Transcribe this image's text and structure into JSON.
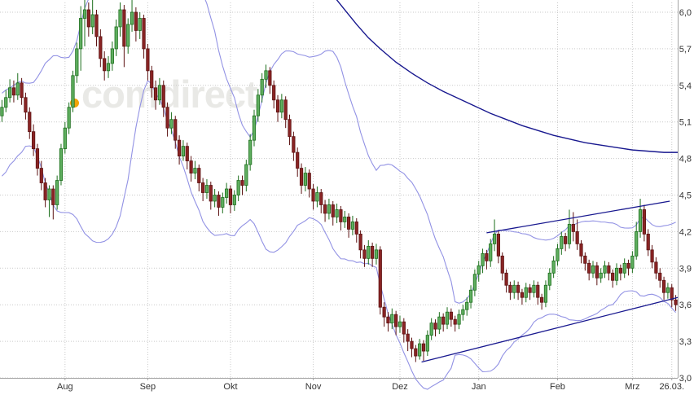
{
  "watermark": {
    "dot_icon": "orange-dot",
    "dot_color": "#f2a407",
    "text": "comdirect",
    "text_color": "#e9e9e6"
  },
  "chart_data": {
    "type": "candlestick",
    "grid": true,
    "legend": "none",
    "y_axis": {
      "min": 3.0,
      "max": 6.0,
      "side": "right",
      "ticks": [
        {
          "label": "6,0",
          "value": 6.0
        },
        {
          "label": "5,7",
          "value": 5.7
        },
        {
          "label": "5,4",
          "value": 5.4
        },
        {
          "label": "5,1",
          "value": 5.1
        },
        {
          "label": "4,8",
          "value": 4.8
        },
        {
          "label": "4,5",
          "value": 4.5
        },
        {
          "label": "4,2",
          "value": 4.2
        },
        {
          "label": "3,9",
          "value": 3.9
        },
        {
          "label": "3,6",
          "value": 3.6
        },
        {
          "label": "3,3",
          "value": 3.3
        },
        {
          "label": "3,0",
          "value": 3.0
        }
      ]
    },
    "x_axis": {
      "ticks": [
        {
          "label": "Aug",
          "index": 16
        },
        {
          "label": "Sep",
          "index": 37
        },
        {
          "label": "Okt",
          "index": 58
        },
        {
          "label": "Nov",
          "index": 79
        },
        {
          "label": "Dez",
          "index": 101
        },
        {
          "label": "Jan",
          "index": 121
        },
        {
          "label": "Feb",
          "index": 141
        },
        {
          "label": "Mrz",
          "index": 160
        },
        {
          "label": "26.03.",
          "index": 170
        }
      ]
    },
    "colors": {
      "up_fill": "#5fae5f",
      "up_stroke": "#1d6f1d",
      "down_fill": "#8a2424",
      "down_stroke": "#5c1212",
      "band": "#9292e4",
      "trend": "#18188f",
      "grid": "#c9c9c9",
      "axis_line": "#a5a5a5",
      "axis_text": "#333333"
    },
    "candles": [
      [
        5.15,
        5.28,
        5.1,
        5.22
      ],
      [
        5.22,
        5.36,
        5.18,
        5.3
      ],
      [
        5.3,
        5.45,
        5.26,
        5.38
      ],
      [
        5.38,
        5.44,
        5.26,
        5.32
      ],
      [
        5.32,
        5.5,
        5.28,
        5.42
      ],
      [
        5.42,
        5.46,
        5.24,
        5.3
      ],
      [
        5.3,
        5.34,
        5.12,
        5.18
      ],
      [
        5.18,
        5.22,
        4.96,
        5.02
      ],
      [
        5.02,
        5.08,
        4.82,
        4.88
      ],
      [
        4.88,
        4.92,
        4.66,
        4.72
      ],
      [
        4.72,
        4.78,
        4.54,
        4.6
      ],
      [
        4.6,
        4.64,
        4.4,
        4.46
      ],
      [
        4.46,
        4.58,
        4.32,
        4.55
      ],
      [
        4.55,
        4.58,
        4.3,
        4.42
      ],
      [
        4.42,
        4.66,
        4.38,
        4.62
      ],
      [
        4.62,
        4.92,
        4.58,
        4.88
      ],
      [
        4.88,
        5.1,
        4.84,
        5.05
      ],
      [
        5.05,
        5.26,
        5.0,
        5.22
      ],
      [
        5.22,
        5.52,
        5.18,
        5.48
      ],
      [
        5.48,
        5.75,
        5.42,
        5.7
      ],
      [
        5.7,
        6.05,
        5.52,
        5.95
      ],
      [
        5.95,
        6.1,
        5.72,
        6.02
      ],
      [
        6.02,
        6.08,
        5.8,
        5.88
      ],
      [
        5.88,
        6.12,
        5.82,
        5.98
      ],
      [
        5.98,
        6.02,
        5.72,
        5.8
      ],
      [
        5.8,
        5.86,
        5.55,
        5.62
      ],
      [
        5.62,
        5.68,
        5.44,
        5.52
      ],
      [
        5.52,
        5.64,
        5.46,
        5.58
      ],
      [
        5.58,
        5.76,
        5.52,
        5.7
      ],
      [
        5.7,
        5.94,
        5.64,
        5.88
      ],
      [
        5.88,
        6.08,
        5.8,
        6.02
      ],
      [
        6.02,
        6.06,
        5.55,
        5.72
      ],
      [
        5.72,
        5.95,
        5.66,
        5.9
      ],
      [
        5.9,
        6.1,
        5.84,
        6.0
      ],
      [
        6.0,
        6.04,
        5.76,
        5.85
      ],
      [
        5.85,
        6.0,
        5.78,
        5.95
      ],
      [
        5.95,
        5.98,
        5.62,
        5.7
      ],
      [
        5.7,
        5.74,
        5.44,
        5.52
      ],
      [
        5.52,
        5.56,
        5.3,
        5.38
      ],
      [
        5.38,
        5.44,
        5.2,
        5.28
      ],
      [
        5.28,
        5.46,
        5.24,
        5.4
      ],
      [
        5.4,
        5.44,
        5.14,
        5.22
      ],
      [
        5.22,
        5.26,
        4.98,
        5.05
      ],
      [
        5.05,
        5.18,
        5.0,
        5.12
      ],
      [
        5.12,
        5.15,
        4.88,
        4.95
      ],
      [
        4.95,
        4.99,
        4.75,
        4.82
      ],
      [
        4.82,
        4.95,
        4.78,
        4.9
      ],
      [
        4.9,
        4.93,
        4.71,
        4.78
      ],
      [
        4.78,
        4.82,
        4.61,
        4.68
      ],
      [
        4.68,
        4.78,
        4.63,
        4.72
      ],
      [
        4.72,
        4.75,
        4.53,
        4.6
      ],
      [
        4.6,
        4.64,
        4.45,
        4.52
      ],
      [
        4.52,
        4.63,
        4.47,
        4.58
      ],
      [
        4.58,
        4.61,
        4.38,
        4.45
      ],
      [
        4.45,
        4.55,
        4.4,
        4.5
      ],
      [
        4.5,
        4.53,
        4.33,
        4.4
      ],
      [
        4.4,
        4.52,
        4.35,
        4.48
      ],
      [
        4.48,
        4.6,
        4.43,
        4.55
      ],
      [
        4.55,
        4.58,
        4.35,
        4.42
      ],
      [
        4.42,
        4.54,
        4.37,
        4.5
      ],
      [
        4.5,
        4.66,
        4.45,
        4.62
      ],
      [
        4.62,
        4.66,
        4.5,
        4.58
      ],
      [
        4.58,
        4.79,
        4.53,
        4.75
      ],
      [
        4.75,
        5.0,
        4.7,
        4.95
      ],
      [
        4.95,
        5.2,
        4.9,
        5.15
      ],
      [
        5.15,
        5.37,
        5.1,
        5.32
      ],
      [
        5.32,
        5.5,
        5.26,
        5.45
      ],
      [
        5.45,
        5.57,
        5.38,
        5.52
      ],
      [
        5.52,
        5.55,
        5.33,
        5.4
      ],
      [
        5.4,
        5.44,
        5.21,
        5.28
      ],
      [
        5.28,
        5.32,
        5.1,
        5.18
      ],
      [
        5.18,
        5.33,
        5.13,
        5.28
      ],
      [
        5.28,
        5.31,
        5.05,
        5.12
      ],
      [
        5.12,
        5.16,
        4.91,
        4.98
      ],
      [
        4.98,
        5.02,
        4.78,
        4.85
      ],
      [
        4.85,
        4.89,
        4.65,
        4.72
      ],
      [
        4.72,
        4.76,
        4.51,
        4.58
      ],
      [
        4.58,
        4.73,
        4.53,
        4.68
      ],
      [
        4.68,
        4.71,
        4.48,
        4.55
      ],
      [
        4.55,
        4.59,
        4.38,
        4.45
      ],
      [
        4.45,
        4.57,
        4.4,
        4.52
      ],
      [
        4.52,
        4.55,
        4.35,
        4.42
      ],
      [
        4.42,
        4.46,
        4.28,
        4.35
      ],
      [
        4.35,
        4.47,
        4.3,
        4.42
      ],
      [
        4.42,
        4.45,
        4.25,
        4.32
      ],
      [
        4.32,
        4.43,
        4.27,
        4.38
      ],
      [
        4.38,
        4.41,
        4.21,
        4.28
      ],
      [
        4.28,
        4.37,
        4.23,
        4.32
      ],
      [
        4.32,
        4.35,
        4.15,
        4.22
      ],
      [
        4.22,
        4.33,
        4.17,
        4.28
      ],
      [
        4.28,
        4.31,
        4.11,
        4.18
      ],
      [
        4.18,
        4.21,
        3.98,
        4.05
      ],
      [
        4.05,
        4.09,
        3.91,
        3.98
      ],
      [
        3.98,
        4.13,
        3.93,
        4.08
      ],
      [
        4.08,
        4.11,
        3.91,
        3.98
      ],
      [
        3.98,
        4.1,
        3.93,
        4.05
      ],
      [
        4.05,
        4.08,
        3.52,
        3.58
      ],
      [
        3.58,
        3.62,
        3.42,
        3.5
      ],
      [
        3.5,
        3.54,
        3.38,
        3.45
      ],
      [
        3.45,
        3.57,
        3.4,
        3.52
      ],
      [
        3.52,
        3.55,
        3.35,
        3.42
      ],
      [
        3.42,
        3.51,
        3.37,
        3.46
      ],
      [
        3.46,
        3.49,
        3.29,
        3.36
      ],
      [
        3.36,
        3.4,
        3.22,
        3.3
      ],
      [
        3.3,
        3.33,
        3.17,
        3.24
      ],
      [
        3.24,
        3.27,
        3.13,
        3.18
      ],
      [
        3.18,
        3.32,
        3.15,
        3.28
      ],
      [
        3.28,
        3.31,
        3.14,
        3.22
      ],
      [
        3.22,
        3.39,
        3.18,
        3.35
      ],
      [
        3.35,
        3.49,
        3.31,
        3.45
      ],
      [
        3.45,
        3.48,
        3.34,
        3.4
      ],
      [
        3.4,
        3.54,
        3.36,
        3.5
      ],
      [
        3.5,
        3.53,
        3.38,
        3.44
      ],
      [
        3.44,
        3.58,
        3.4,
        3.54
      ],
      [
        3.54,
        3.57,
        3.42,
        3.48
      ],
      [
        3.48,
        3.51,
        3.38,
        3.44
      ],
      [
        3.44,
        3.56,
        3.4,
        3.52
      ],
      [
        3.52,
        3.6,
        3.47,
        3.56
      ],
      [
        3.56,
        3.66,
        3.51,
        3.62
      ],
      [
        3.62,
        3.76,
        3.57,
        3.72
      ],
      [
        3.72,
        3.89,
        3.67,
        3.85
      ],
      [
        3.85,
        3.96,
        3.79,
        3.92
      ],
      [
        3.92,
        4.06,
        3.86,
        4.02
      ],
      [
        4.02,
        4.05,
        3.89,
        3.96
      ],
      [
        3.96,
        4.14,
        3.91,
        4.1
      ],
      [
        4.1,
        4.3,
        4.04,
        4.18
      ],
      [
        4.18,
        4.21,
        3.94,
        4.0
      ],
      [
        4.0,
        4.03,
        3.8,
        3.86
      ],
      [
        3.86,
        3.89,
        3.7,
        3.76
      ],
      [
        3.76,
        3.79,
        3.64,
        3.7
      ],
      [
        3.7,
        3.8,
        3.65,
        3.76
      ],
      [
        3.76,
        3.79,
        3.64,
        3.7
      ],
      [
        3.7,
        3.73,
        3.6,
        3.66
      ],
      [
        3.66,
        3.78,
        3.62,
        3.74
      ],
      [
        3.74,
        3.77,
        3.64,
        3.7
      ],
      [
        3.7,
        3.8,
        3.66,
        3.76
      ],
      [
        3.76,
        3.79,
        3.6,
        3.66
      ],
      [
        3.66,
        3.69,
        3.56,
        3.62
      ],
      [
        3.62,
        3.8,
        3.58,
        3.76
      ],
      [
        3.76,
        3.9,
        3.72,
        3.86
      ],
      [
        3.86,
        4.0,
        3.82,
        3.96
      ],
      [
        3.96,
        4.1,
        3.92,
        4.06
      ],
      [
        4.06,
        4.2,
        4.01,
        4.16
      ],
      [
        4.16,
        4.19,
        4.04,
        4.1
      ],
      [
        4.1,
        4.38,
        4.06,
        4.26
      ],
      [
        4.26,
        4.36,
        4.12,
        4.2
      ],
      [
        4.2,
        4.3,
        4.05,
        4.1
      ],
      [
        4.1,
        4.13,
        3.94,
        4.0
      ],
      [
        4.0,
        4.03,
        3.88,
        3.94
      ],
      [
        3.94,
        3.97,
        3.8,
        3.86
      ],
      [
        3.86,
        3.96,
        3.82,
        3.92
      ],
      [
        3.92,
        3.95,
        3.76,
        3.82
      ],
      [
        3.82,
        3.9,
        3.78,
        3.86
      ],
      [
        3.86,
        3.96,
        3.82,
        3.92
      ],
      [
        3.92,
        3.95,
        3.8,
        3.86
      ],
      [
        3.86,
        3.89,
        3.74,
        3.8
      ],
      [
        3.8,
        3.94,
        3.76,
        3.9
      ],
      [
        3.9,
        3.93,
        3.8,
        3.86
      ],
      [
        3.86,
        3.98,
        3.82,
        3.94
      ],
      [
        3.94,
        3.97,
        3.84,
        3.9
      ],
      [
        3.9,
        4.04,
        3.86,
        4.0
      ],
      [
        4.0,
        4.28,
        3.97,
        4.2
      ],
      [
        4.2,
        4.47,
        4.15,
        4.38
      ],
      [
        4.38,
        4.42,
        4.12,
        4.18
      ],
      [
        4.18,
        4.22,
        4.0,
        4.05
      ],
      [
        4.05,
        4.09,
        3.9,
        3.95
      ],
      [
        3.95,
        3.99,
        3.81,
        3.86
      ],
      [
        3.86,
        3.9,
        3.74,
        3.8
      ],
      [
        3.8,
        3.83,
        3.64,
        3.7
      ],
      [
        3.7,
        3.78,
        3.65,
        3.74
      ],
      [
        3.74,
        3.77,
        3.58,
        3.64
      ],
      [
        3.64,
        3.68,
        3.55,
        3.6
      ]
    ],
    "overlays": {
      "bollinger": {
        "period": 20,
        "stddev": 2,
        "warmup_closes": [
          4.55,
          4.7,
          4.62,
          4.8,
          4.75,
          4.9,
          4.85,
          5.0,
          4.92,
          5.05,
          5.0,
          5.1,
          5.05,
          5.12,
          5.08,
          5.15,
          5.1,
          5.18,
          5.12,
          5.2
        ]
      },
      "sma_long": {
        "points": [
          [
            84,
            6.14
          ],
          [
            87,
            6.02
          ],
          [
            90,
            5.9
          ],
          [
            93,
            5.79
          ],
          [
            96,
            5.7
          ],
          [
            100,
            5.59
          ],
          [
            104,
            5.5
          ],
          [
            108,
            5.42
          ],
          [
            112,
            5.35
          ],
          [
            116,
            5.29
          ],
          [
            120,
            5.23
          ],
          [
            124,
            5.17
          ],
          [
            128,
            5.12
          ],
          [
            132,
            5.07
          ],
          [
            136,
            5.03
          ],
          [
            140,
            4.99
          ],
          [
            144,
            4.96
          ],
          [
            148,
            4.93
          ],
          [
            152,
            4.91
          ],
          [
            156,
            4.89
          ],
          [
            160,
            4.87
          ],
          [
            164,
            4.86
          ],
          [
            168,
            4.85
          ],
          [
            171.5,
            4.85
          ]
        ]
      },
      "trendlines": [
        {
          "name": "resistance",
          "from": [
            123,
            4.19
          ],
          "to": [
            169.5,
            4.45
          ]
        },
        {
          "name": "support",
          "from": [
            106.5,
            3.13
          ],
          "to": [
            171.5,
            3.66
          ]
        }
      ]
    }
  }
}
